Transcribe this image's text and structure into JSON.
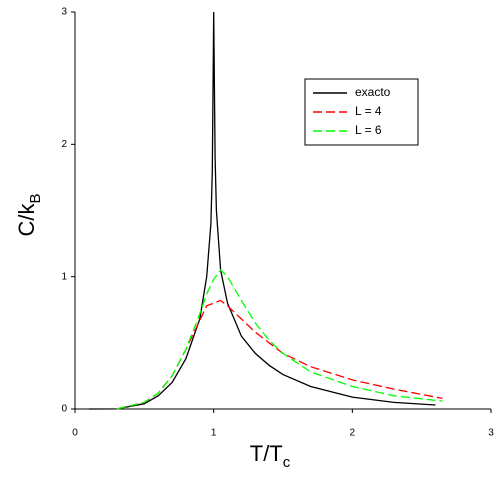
{
  "chart_data": {
    "type": "line",
    "xlabel": "T/T",
    "xlabel_sub": "c",
    "ylabel": "C/k",
    "ylabel_sub": "B",
    "xlim": [
      0,
      3
    ],
    "ylim": [
      0,
      3
    ],
    "xticks": [
      0,
      1,
      2,
      3
    ],
    "yticks": [
      0,
      1,
      2,
      3
    ],
    "legend": "upper right",
    "series": [
      {
        "name": "exacto",
        "color": "#000000",
        "dash": "solid",
        "x": [
          0.1,
          0.3,
          0.5,
          0.6,
          0.7,
          0.8,
          0.9,
          0.95,
          0.98,
          0.99,
          1.0,
          1.01,
          1.02,
          1.05,
          1.1,
          1.2,
          1.3,
          1.4,
          1.5,
          1.7,
          2.0,
          2.3,
          2.6
        ],
        "values": [
          0,
          0.001,
          0.04,
          0.1,
          0.2,
          0.38,
          0.68,
          1.0,
          1.4,
          1.8,
          3.0,
          1.9,
          1.5,
          1.05,
          0.8,
          0.55,
          0.42,
          0.33,
          0.26,
          0.17,
          0.09,
          0.05,
          0.03
        ]
      },
      {
        "name": "L = 4",
        "color": "#ff0000",
        "dash": "dashed",
        "x": [
          0.3,
          0.5,
          0.6,
          0.7,
          0.8,
          0.9,
          0.95,
          1.0,
          1.05,
          1.1,
          1.2,
          1.3,
          1.4,
          1.5,
          1.7,
          2.0,
          2.3,
          2.65
        ],
        "values": [
          0,
          0.05,
          0.12,
          0.25,
          0.45,
          0.67,
          0.78,
          0.8,
          0.82,
          0.78,
          0.68,
          0.58,
          0.5,
          0.42,
          0.32,
          0.22,
          0.15,
          0.08
        ]
      },
      {
        "name": "L = 6",
        "color": "#00ff00",
        "dash": "dashed",
        "x": [
          0.3,
          0.5,
          0.6,
          0.7,
          0.8,
          0.9,
          0.95,
          1.0,
          1.05,
          1.1,
          1.2,
          1.3,
          1.4,
          1.5,
          1.7,
          2.0,
          2.3,
          2.65
        ],
        "values": [
          0,
          0.05,
          0.12,
          0.25,
          0.45,
          0.72,
          0.87,
          0.98,
          1.05,
          1.0,
          0.82,
          0.65,
          0.52,
          0.42,
          0.28,
          0.17,
          0.1,
          0.06
        ]
      }
    ]
  }
}
